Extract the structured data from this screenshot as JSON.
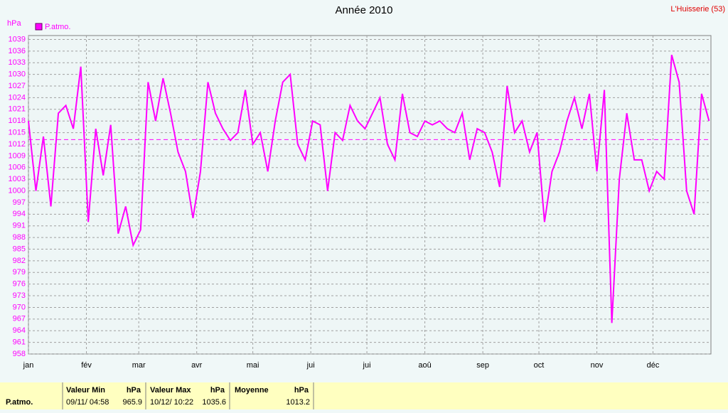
{
  "chart_data": {
    "type": "line",
    "title": "Année 2010",
    "location": "L'Huisserie (53)",
    "y_label": "hPa",
    "x": [
      0,
      4,
      8,
      12,
      16,
      20,
      24,
      28,
      32,
      36,
      40,
      44,
      48,
      52,
      56,
      60,
      64,
      68,
      72,
      76,
      80,
      84,
      88,
      92,
      96,
      100,
      104,
      108,
      112,
      116,
      120,
      124,
      128,
      132,
      136,
      140,
      144,
      148,
      152,
      156,
      160,
      164,
      168,
      172,
      176,
      180,
      184,
      188,
      192,
      196,
      200,
      204,
      208,
      212,
      216,
      220,
      224,
      228,
      232,
      236,
      240,
      244,
      248,
      252,
      256,
      260,
      264,
      268,
      272,
      276,
      280,
      284,
      288,
      292,
      296,
      300,
      304,
      308,
      312,
      316,
      320,
      324,
      328,
      332,
      336,
      340,
      344,
      348,
      352,
      356,
      360,
      364
    ],
    "series": [
      {
        "name": "P.atmo.",
        "color": "#ff00ff",
        "values": [
          1018,
          1000,
          1014,
          996,
          1020,
          1022,
          1016,
          1032,
          992,
          1016,
          1004,
          1017,
          989,
          996,
          986,
          990,
          1028,
          1018,
          1029,
          1020,
          1010,
          1005,
          993,
          1005,
          1028,
          1020,
          1016,
          1013,
          1015,
          1026,
          1012,
          1015,
          1005,
          1018,
          1028,
          1030,
          1012,
          1008,
          1018,
          1017,
          1000,
          1015,
          1013,
          1022,
          1018,
          1016,
          1020,
          1024,
          1012,
          1008,
          1025,
          1015,
          1014,
          1018,
          1017,
          1018,
          1016,
          1015,
          1020,
          1008,
          1016,
          1015,
          1010,
          1001,
          1027,
          1015,
          1018,
          1010,
          1015,
          992,
          1005,
          1010,
          1018,
          1024,
          1016,
          1025,
          1005,
          1026,
          966,
          1003,
          1020,
          1008,
          1008,
          1000,
          1005,
          1003,
          1035,
          1028,
          1000,
          994,
          1025,
          1018
        ]
      }
    ],
    "xlim": [
      0,
      365
    ],
    "xticks": [
      {
        "value": 0,
        "label": "jan"
      },
      {
        "value": 31,
        "label": "fév"
      },
      {
        "value": 59,
        "label": "mar"
      },
      {
        "value": 90,
        "label": "avr"
      },
      {
        "value": 120,
        "label": "mai"
      },
      {
        "value": 151,
        "label": "jui"
      },
      {
        "value": 181,
        "label": "jui"
      },
      {
        "value": 212,
        "label": "aoû"
      },
      {
        "value": 243,
        "label": "sep"
      },
      {
        "value": 273,
        "label": "oct"
      },
      {
        "value": 304,
        "label": "nov"
      },
      {
        "value": 334,
        "label": "déc"
      }
    ],
    "ylim": [
      958,
      1040
    ],
    "yticks": [
      958,
      961,
      964,
      967,
      970,
      973,
      976,
      979,
      982,
      985,
      988,
      991,
      994,
      997,
      1000,
      1003,
      1006,
      1009,
      1012,
      1015,
      1018,
      1021,
      1024,
      1027,
      1030,
      1033,
      1036,
      1039
    ],
    "grid": true
  },
  "stats": {
    "min": {
      "title": "Valeur Min",
      "unit": "hPa",
      "date": "09/11/ 04:58",
      "value": 965.9
    },
    "max": {
      "title": "Valeur Max",
      "unit": "hPa",
      "date": "10/12/ 10:22",
      "value": 1035.6
    },
    "mean": {
      "title": "Moyenne",
      "unit": "hPa",
      "value": 1013.2
    }
  }
}
